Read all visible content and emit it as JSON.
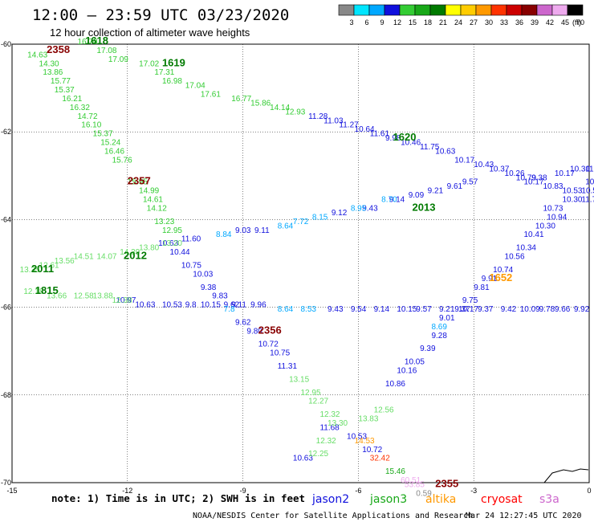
{
  "header": {
    "title": "12:00 – 23:59 UTC 03/23/2020",
    "subtitle": "12 hour collection of altimeter wave heights"
  },
  "colorbar": {
    "unit_label": "(ft)",
    "ticks": [
      "3",
      "6",
      "9",
      "12",
      "15",
      "18",
      "21",
      "24",
      "27",
      "30",
      "33",
      "36",
      "39",
      "42",
      "45",
      "70"
    ],
    "colors": [
      "#888888",
      "#00e5ff",
      "#00a8ff",
      "#1010dd",
      "#33cc33",
      "#18a818",
      "#007a00",
      "#ffff00",
      "#ffcc00",
      "#ff9900",
      "#ff3300",
      "#cc0000",
      "#880000",
      "#cc66cc",
      "#eeaaee",
      "#000000"
    ]
  },
  "chart_data": {
    "type": "scatter",
    "xlim": [
      -15,
      0
    ],
    "ylim": [
      -70,
      -60
    ],
    "x_ticks": [
      "-15",
      "-12",
      "-9",
      "-6",
      "-3",
      "0"
    ],
    "y_ticks": [
      "-60",
      "-62",
      "-64",
      "-66",
      "-68",
      "-70"
    ],
    "grid": true,
    "points": [
      {
        "x": -14.6,
        "y": -60.3,
        "v": "14.63",
        "c": "#33cc33"
      },
      {
        "x": -14.3,
        "y": -60.5,
        "v": "14.30",
        "c": "#33cc33"
      },
      {
        "x": -14.2,
        "y": -60.7,
        "v": "13.86",
        "c": "#33cc33"
      },
      {
        "x": -14.0,
        "y": -60.9,
        "v": "15.77",
        "c": "#33cc33"
      },
      {
        "x": -13.9,
        "y": -61.1,
        "v": "15.37",
        "c": "#33cc33"
      },
      {
        "x": -13.7,
        "y": -61.3,
        "v": "16.21",
        "c": "#33cc33"
      },
      {
        "x": -13.5,
        "y": -61.5,
        "v": "16.32",
        "c": "#33cc33"
      },
      {
        "x": -13.3,
        "y": -61.7,
        "v": "14.72",
        "c": "#33cc33"
      },
      {
        "x": -13.2,
        "y": -61.9,
        "v": "16.10",
        "c": "#33cc33"
      },
      {
        "x": -12.9,
        "y": -62.1,
        "v": "15.37",
        "c": "#33cc33"
      },
      {
        "x": -12.7,
        "y": -62.3,
        "v": "15.24",
        "c": "#33cc33"
      },
      {
        "x": -12.6,
        "y": -62.5,
        "v": "16.46",
        "c": "#33cc33"
      },
      {
        "x": -12.4,
        "y": -62.7,
        "v": "15.76",
        "c": "#33cc33"
      },
      {
        "x": -12.0,
        "y": -63.2,
        "v": "15.95",
        "c": "#33cc33"
      },
      {
        "x": -11.7,
        "y": -63.4,
        "v": "14.99",
        "c": "#33cc33"
      },
      {
        "x": -11.6,
        "y": -63.6,
        "v": "14.61",
        "c": "#33cc33"
      },
      {
        "x": -11.5,
        "y": -63.8,
        "v": "14.12",
        "c": "#33cc33"
      },
      {
        "x": -11.3,
        "y": -64.1,
        "v": "13.23",
        "c": "#33cc33"
      },
      {
        "x": -11.1,
        "y": -64.3,
        "v": "12.95",
        "c": "#33cc33"
      },
      {
        "x": -13.3,
        "y": -60.0,
        "v": "16.70",
        "c": "#33cc33"
      },
      {
        "x": -12.8,
        "y": -60.2,
        "v": "17.08",
        "c": "#33cc33"
      },
      {
        "x": -12.5,
        "y": -60.4,
        "v": "17.09",
        "c": "#33cc33"
      },
      {
        "x": -11.7,
        "y": -60.5,
        "v": "17.02",
        "c": "#33cc33"
      },
      {
        "x": -11.3,
        "y": -60.7,
        "v": "17.31",
        "c": "#33cc33"
      },
      {
        "x": -11.1,
        "y": -60.9,
        "v": "16.98",
        "c": "#33cc33"
      },
      {
        "x": -10.5,
        "y": -61.0,
        "v": "17.04",
        "c": "#33cc33"
      },
      {
        "x": -10.1,
        "y": -61.2,
        "v": "17.61",
        "c": "#33cc33"
      },
      {
        "x": -9.3,
        "y": -61.3,
        "v": "16.77",
        "c": "#33cc33"
      },
      {
        "x": -8.8,
        "y": -61.4,
        "v": "15.86",
        "c": "#33cc33"
      },
      {
        "x": -8.3,
        "y": -61.5,
        "v": "14.14",
        "c": "#33cc33"
      },
      {
        "x": -7.9,
        "y": -61.6,
        "v": "12.93",
        "c": "#33cc33"
      },
      {
        "x": -7.3,
        "y": -61.7,
        "v": "11.28",
        "c": "#1010dd"
      },
      {
        "x": -6.9,
        "y": -61.8,
        "v": "11.03",
        "c": "#1010dd"
      },
      {
        "x": -6.5,
        "y": -61.9,
        "v": "11.27",
        "c": "#1010dd"
      },
      {
        "x": -6.1,
        "y": -62.0,
        "v": "10.64",
        "c": "#1010dd"
      },
      {
        "x": -5.7,
        "y": -62.1,
        "v": "11.61",
        "c": "#1010dd"
      },
      {
        "x": -5.3,
        "y": -62.2,
        "v": "9.98",
        "c": "#1010dd"
      },
      {
        "x": -4.9,
        "y": -62.3,
        "v": "10.46",
        "c": "#1010dd"
      },
      {
        "x": -4.4,
        "y": -62.4,
        "v": "11.75",
        "c": "#1010dd"
      },
      {
        "x": -4.0,
        "y": -62.5,
        "v": "10.63",
        "c": "#1010dd"
      },
      {
        "x": -3.5,
        "y": -62.7,
        "v": "10.17",
        "c": "#1010dd"
      },
      {
        "x": -3.0,
        "y": -62.8,
        "v": "10.43",
        "c": "#1010dd"
      },
      {
        "x": -2.6,
        "y": -62.9,
        "v": "10.37",
        "c": "#1010dd"
      },
      {
        "x": -2.2,
        "y": -63.0,
        "v": "10.26",
        "c": "#1010dd"
      },
      {
        "x": -1.9,
        "y": -63.1,
        "v": "10.79",
        "c": "#1010dd"
      },
      {
        "x": -1.5,
        "y": -63.1,
        "v": "9.38",
        "c": "#1010dd"
      },
      {
        "x": -0.9,
        "y": -63.0,
        "v": "10.17",
        "c": "#1010dd"
      },
      {
        "x": -0.5,
        "y": -62.9,
        "v": "10.30",
        "c": "#1010dd"
      },
      {
        "x": -0.1,
        "y": -62.9,
        "v": "11.75",
        "c": "#1010dd"
      },
      {
        "x": -0.1,
        "y": -63.2,
        "v": "10.01",
        "c": "#1010dd"
      },
      {
        "x": -1.7,
        "y": -63.2,
        "v": "10.17",
        "c": "#1010dd"
      },
      {
        "x": -1.2,
        "y": -63.3,
        "v": "10.83",
        "c": "#1010dd"
      },
      {
        "x": -0.7,
        "y": -63.4,
        "v": "10.53",
        "c": "#1010dd"
      },
      {
        "x": -0.2,
        "y": -63.4,
        "v": "10.57",
        "c": "#1010dd"
      },
      {
        "x": -0.7,
        "y": -63.6,
        "v": "10.30",
        "c": "#1010dd"
      },
      {
        "x": -0.2,
        "y": -63.6,
        "v": "11.76",
        "c": "#1010dd"
      },
      {
        "x": -1.2,
        "y": -63.8,
        "v": "10.73",
        "c": "#1010dd"
      },
      {
        "x": -1.1,
        "y": -64.0,
        "v": "10.94",
        "c": "#1010dd"
      },
      {
        "x": -1.4,
        "y": -64.2,
        "v": "10.30",
        "c": "#1010dd"
      },
      {
        "x": -1.7,
        "y": -64.4,
        "v": "10.41",
        "c": "#1010dd"
      },
      {
        "x": -1.9,
        "y": -64.7,
        "v": "10.34",
        "c": "#1010dd"
      },
      {
        "x": -2.2,
        "y": -64.9,
        "v": "10.56",
        "c": "#1010dd"
      },
      {
        "x": -2.5,
        "y": -65.2,
        "v": "10.74",
        "c": "#1010dd"
      },
      {
        "x": -2.8,
        "y": -65.4,
        "v": "9.91",
        "c": "#1010dd"
      },
      {
        "x": -3.0,
        "y": -65.6,
        "v": "9.81",
        "c": "#1010dd"
      },
      {
        "x": -3.3,
        "y": -65.9,
        "v": "9.75",
        "c": "#1010dd"
      },
      {
        "x": -3.5,
        "y": -66.1,
        "v": "9.37",
        "c": "#1010dd"
      },
      {
        "x": -3.9,
        "y": -66.3,
        "v": "9.01",
        "c": "#1010dd"
      },
      {
        "x": -4.1,
        "y": -66.7,
        "v": "9.28",
        "c": "#1010dd"
      },
      {
        "x": -4.4,
        "y": -67.0,
        "v": "9.39",
        "c": "#1010dd"
      },
      {
        "x": -4.8,
        "y": -67.3,
        "v": "10.05",
        "c": "#1010dd"
      },
      {
        "x": -5.0,
        "y": -67.5,
        "v": "10.16",
        "c": "#1010dd"
      },
      {
        "x": -5.3,
        "y": -67.8,
        "v": "10.86",
        "c": "#1010dd"
      },
      {
        "x": -11.2,
        "y": -64.6,
        "v": "10.63",
        "c": "#1010dd"
      },
      {
        "x": -10.9,
        "y": -64.8,
        "v": "10.44",
        "c": "#1010dd"
      },
      {
        "x": -10.6,
        "y": -65.1,
        "v": "10.75",
        "c": "#1010dd"
      },
      {
        "x": -10.3,
        "y": -65.3,
        "v": "10.03",
        "c": "#1010dd"
      },
      {
        "x": -10.1,
        "y": -65.6,
        "v": "9.38",
        "c": "#1010dd"
      },
      {
        "x": -9.8,
        "y": -65.8,
        "v": "9.83",
        "c": "#1010dd"
      },
      {
        "x": -9.5,
        "y": -66.0,
        "v": "9.62",
        "c": "#1010dd"
      },
      {
        "x": -9.2,
        "y": -66.4,
        "v": "9.62",
        "c": "#1010dd"
      },
      {
        "x": -8.9,
        "y": -66.6,
        "v": "9.80",
        "c": "#1010dd"
      },
      {
        "x": -8.6,
        "y": -66.9,
        "v": "10.72",
        "c": "#1010dd"
      },
      {
        "x": -8.3,
        "y": -67.1,
        "v": "10.75",
        "c": "#1010dd"
      },
      {
        "x": -8.1,
        "y": -67.4,
        "v": "11.31",
        "c": "#1010dd"
      },
      {
        "x": -10.6,
        "y": -64.5,
        "v": "11.60",
        "c": "#1010dd"
      },
      {
        "x": -12.3,
        "y": -65.9,
        "v": "10.97",
        "c": "#1010dd"
      },
      {
        "x": -11.8,
        "y": -66.0,
        "v": "10.63",
        "c": "#1010dd"
      },
      {
        "x": -11.1,
        "y": -66.0,
        "v": "10.53",
        "c": "#1010dd"
      },
      {
        "x": -10.5,
        "y": -66.0,
        "v": "9.8",
        "c": "#1010dd"
      },
      {
        "x": -10.1,
        "y": -66.0,
        "v": "10.15",
        "c": "#1010dd"
      },
      {
        "x": -9.3,
        "y": -66.0,
        "v": "9.11",
        "c": "#1010dd"
      },
      {
        "x": -8.8,
        "y": -66.0,
        "v": "9.96",
        "c": "#1010dd"
      },
      {
        "x": -6.8,
        "y": -66.1,
        "v": "9.43",
        "c": "#1010dd"
      },
      {
        "x": -6.2,
        "y": -66.1,
        "v": "9.54",
        "c": "#1010dd"
      },
      {
        "x": -5.6,
        "y": -66.1,
        "v": "9.14",
        "c": "#1010dd"
      },
      {
        "x": -5.0,
        "y": -66.1,
        "v": "10.15",
        "c": "#1010dd"
      },
      {
        "x": -4.5,
        "y": -66.1,
        "v": "9.57",
        "c": "#1010dd"
      },
      {
        "x": -3.9,
        "y": -66.1,
        "v": "9.21",
        "c": "#1010dd"
      },
      {
        "x": -3.4,
        "y": -66.1,
        "v": "10.17",
        "c": "#1010dd"
      },
      {
        "x": -2.9,
        "y": -66.1,
        "v": "9.37",
        "c": "#1010dd"
      },
      {
        "x": -2.3,
        "y": -66.1,
        "v": "9.42",
        "c": "#1010dd"
      },
      {
        "x": -1.8,
        "y": -66.1,
        "v": "10.09",
        "c": "#1010dd"
      },
      {
        "x": -1.3,
        "y": -66.1,
        "v": "9.78",
        "c": "#1010dd"
      },
      {
        "x": -0.9,
        "y": -66.1,
        "v": "9.66",
        "c": "#1010dd"
      },
      {
        "x": -0.4,
        "y": -66.1,
        "v": "9.92",
        "c": "#1010dd"
      },
      {
        "x": -9.2,
        "y": -64.3,
        "v": "9.03",
        "c": "#1010dd"
      },
      {
        "x": -8.7,
        "y": -64.3,
        "v": "9.11",
        "c": "#1010dd"
      },
      {
        "x": -6.7,
        "y": -63.9,
        "v": "9.12",
        "c": "#1010dd"
      },
      {
        "x": -5.9,
        "y": -63.8,
        "v": "9.43",
        "c": "#1010dd"
      },
      {
        "x": -5.2,
        "y": -63.6,
        "v": "9.14",
        "c": "#1010dd"
      },
      {
        "x": -4.7,
        "y": -63.5,
        "v": "9.09",
        "c": "#1010dd"
      },
      {
        "x": -4.2,
        "y": -63.4,
        "v": "9.21",
        "c": "#1010dd"
      },
      {
        "x": -3.7,
        "y": -63.3,
        "v": "9.61",
        "c": "#1010dd"
      },
      {
        "x": -3.3,
        "y": -63.2,
        "v": "9.57",
        "c": "#1010dd"
      },
      {
        "x": -6.3,
        "y": -69.0,
        "v": "10.53",
        "c": "#1010dd"
      },
      {
        "x": -7.0,
        "y": -68.8,
        "v": "11.68",
        "c": "#1010dd"
      },
      {
        "x": -5.9,
        "y": -69.3,
        "v": "10.72",
        "c": "#1010dd"
      },
      {
        "x": -7.7,
        "y": -69.5,
        "v": "10.63",
        "c": "#1010dd"
      },
      {
        "x": -9.7,
        "y": -64.4,
        "v": "8.84",
        "c": "#00a8ff"
      },
      {
        "x": -8.1,
        "y": -64.2,
        "v": "8.64",
        "c": "#00a8ff"
      },
      {
        "x": -7.7,
        "y": -64.1,
        "v": "7.72",
        "c": "#00a8ff"
      },
      {
        "x": -7.2,
        "y": -64.0,
        "v": "8.15",
        "c": "#00a8ff"
      },
      {
        "x": -6.2,
        "y": -63.8,
        "v": "8.95",
        "c": "#00a8ff"
      },
      {
        "x": -5.4,
        "y": -63.6,
        "v": "8.70",
        "c": "#00a8ff"
      },
      {
        "x": -9.5,
        "y": -66.1,
        "v": "7.8",
        "c": "#00a8ff"
      },
      {
        "x": -8.1,
        "y": -66.1,
        "v": "8.64",
        "c": "#00a8ff"
      },
      {
        "x": -7.5,
        "y": -66.1,
        "v": "8.53",
        "c": "#00a8ff"
      },
      {
        "x": -4.1,
        "y": -66.5,
        "v": "8.69",
        "c": "#00a8ff"
      },
      {
        "x": -14.8,
        "y": -65.2,
        "v": "13.35",
        "c": "#66dd66"
      },
      {
        "x": -14.3,
        "y": -65.1,
        "v": "12.61",
        "c": "#66dd66"
      },
      {
        "x": -13.9,
        "y": -65.0,
        "v": "13.56",
        "c": "#66dd66"
      },
      {
        "x": -13.4,
        "y": -64.9,
        "v": "14.51",
        "c": "#66dd66"
      },
      {
        "x": -12.8,
        "y": -64.9,
        "v": "14.07",
        "c": "#66dd66"
      },
      {
        "x": -12.2,
        "y": -64.8,
        "v": "14.39",
        "c": "#66dd66"
      },
      {
        "x": -11.7,
        "y": -64.7,
        "v": "13.80",
        "c": "#66dd66"
      },
      {
        "x": -11.1,
        "y": -64.6,
        "v": "13.20",
        "c": "#66dd66"
      },
      {
        "x": -14.7,
        "y": -65.7,
        "v": "12.18",
        "c": "#66dd66"
      },
      {
        "x": -14.1,
        "y": -65.8,
        "v": "13.66",
        "c": "#66dd66"
      },
      {
        "x": -13.4,
        "y": -65.8,
        "v": "12.58",
        "c": "#66dd66"
      },
      {
        "x": -12.9,
        "y": -65.8,
        "v": "13.88",
        "c": "#66dd66"
      },
      {
        "x": -12.4,
        "y": -65.9,
        "v": "12.38",
        "c": "#66dd66"
      },
      {
        "x": -7.8,
        "y": -67.7,
        "v": "13.15",
        "c": "#66dd66"
      },
      {
        "x": -7.5,
        "y": -68.0,
        "v": "12.95",
        "c": "#66dd66"
      },
      {
        "x": -7.3,
        "y": -68.2,
        "v": "12.27",
        "c": "#66dd66"
      },
      {
        "x": -7.0,
        "y": -68.5,
        "v": "12.32",
        "c": "#66dd66"
      },
      {
        "x": -6.8,
        "y": -68.7,
        "v": "13.30",
        "c": "#66dd66"
      },
      {
        "x": -6.0,
        "y": -68.6,
        "v": "13.83",
        "c": "#66dd66"
      },
      {
        "x": -5.6,
        "y": -68.4,
        "v": "12.56",
        "c": "#66dd66"
      },
      {
        "x": -7.1,
        "y": -69.1,
        "v": "12.32",
        "c": "#66dd66"
      },
      {
        "x": -7.3,
        "y": -69.4,
        "v": "12.25",
        "c": "#66dd66"
      },
      {
        "x": -5.3,
        "y": -69.8,
        "v": "15.46",
        "c": "#18a818"
      },
      {
        "x": -5.7,
        "y": -69.5,
        "v": "32.42",
        "c": "#ff3300"
      },
      {
        "x": -6.1,
        "y": -69.1,
        "v": "14.53",
        "c": "#ff9900"
      },
      {
        "x": -4.9,
        "y": -70.0,
        "v": "60.51",
        "c": "#eeaaee"
      },
      {
        "x": -4.8,
        "y": -70.1,
        "v": "53.85",
        "c": "#eeaaee"
      },
      {
        "x": -4.5,
        "y": -70.3,
        "v": "0.59",
        "c": "#888888"
      }
    ],
    "passes": [
      {
        "x": -13.1,
        "y": -60.0,
        "t": "1618",
        "c": "#007a00"
      },
      {
        "x": -11.1,
        "y": -60.5,
        "t": "1619",
        "c": "#007a00"
      },
      {
        "x": -14.1,
        "y": -60.2,
        "t": "2358",
        "c": "#880000"
      },
      {
        "x": -5.1,
        "y": -62.2,
        "t": "1620",
        "c": "#007a00"
      },
      {
        "x": -12.0,
        "y": -63.2,
        "t": "2357",
        "c": "#880000"
      },
      {
        "x": -4.6,
        "y": -63.8,
        "t": "2013",
        "c": "#007a00"
      },
      {
        "x": -12.1,
        "y": -64.9,
        "t": "2012",
        "c": "#007a00"
      },
      {
        "x": -14.5,
        "y": -65.2,
        "t": "2011",
        "c": "#007a00"
      },
      {
        "x": -14.4,
        "y": -65.7,
        "t": "1815",
        "c": "#007a00"
      },
      {
        "x": -2.6,
        "y": -65.4,
        "t": "1652",
        "c": "#ff9900"
      },
      {
        "x": -8.6,
        "y": -66.6,
        "t": "2356",
        "c": "#880000"
      },
      {
        "x": -4.0,
        "y": -70.1,
        "t": "2355",
        "c": "#880000"
      }
    ]
  },
  "footer": {
    "note": "note: 1) Time is in UTC; 2) SWH is in feet",
    "satellites": [
      {
        "name": "jason2",
        "color": "#1010dd"
      },
      {
        "name": "jason3",
        "color": "#18a818"
      },
      {
        "name": "altika",
        "color": "#ff9900"
      },
      {
        "name": "cryosat",
        "color": "#ff0000"
      },
      {
        "name": "s3a",
        "color": "#cc66cc"
      }
    ],
    "credit": "NOAA/NESDIS Center for Satellite Applications and Research",
    "timestamp": "Mar 24 12:27:45 UTC 2020"
  }
}
